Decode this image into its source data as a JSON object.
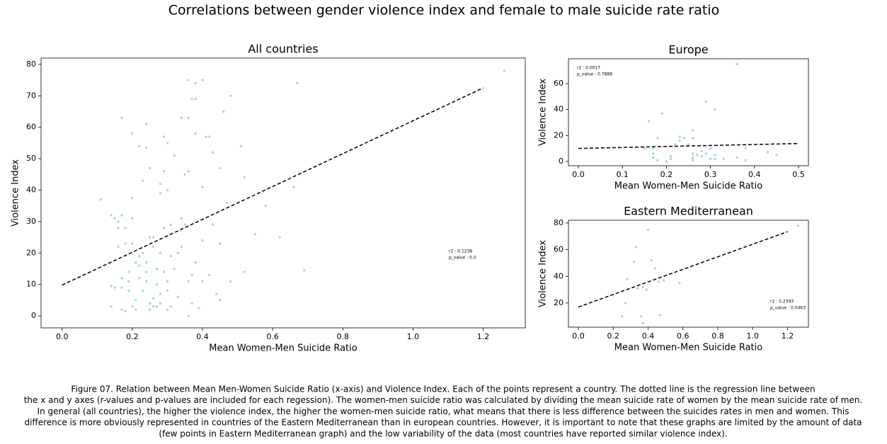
{
  "title": "Correlations between gender violence index and female to male suicide rate ratio",
  "caption": [
    "Figure 07. Relation between Mean Men-Women Suicide Ratio (x-axis) and Violence Index. Each of the points represent a country. The dotted line is the regression line between",
    "the x and y axes (r-values and p-values are included for each regession). The women-men suicide ratio was calculated by dividing the mean suicide rate of women by the mean suicide rate of men.",
    "In general (all countries), the higher the violence index, the higher the women-men suicide ratio, what means that there is less difference between the suicides rates in men and women. This",
    "difference is more obviously represented in countries of the Eastern Mediterranean than in european countries. However, it is important to note that these graphs are limited by the amount of data",
    "(few points in Eastern Mediterranean graph) and the low variability of the data (most countries have reported similar violence index)."
  ],
  "chart_data": [
    {
      "type": "scatter",
      "title": "All countries",
      "x_label": "Mean Women-Men Suicide Ratio",
      "y_label": "Violence Index",
      "color": "#a6d5ea",
      "x": [
        0.11,
        0.14,
        0.14,
        0.14,
        0.15,
        0.15,
        0.16,
        0.16,
        0.16,
        0.17,
        0.17,
        0.17,
        0.17,
        0.17,
        0.18,
        0.18,
        0.18,
        0.19,
        0.19,
        0.19,
        0.2,
        0.2,
        0.2,
        0.2,
        0.2,
        0.21,
        0.21,
        0.21,
        0.22,
        0.22,
        0.22,
        0.22,
        0.23,
        0.23,
        0.23,
        0.24,
        0.24,
        0.24,
        0.24,
        0.24,
        0.25,
        0.25,
        0.25,
        0.25,
        0.26,
        0.26,
        0.26,
        0.26,
        0.27,
        0.27,
        0.27,
        0.28,
        0.28,
        0.28,
        0.28,
        0.28,
        0.29,
        0.29,
        0.29,
        0.29,
        0.3,
        0.3,
        0.3,
        0.3,
        0.3,
        0.31,
        0.31,
        0.31,
        0.32,
        0.32,
        0.33,
        0.33,
        0.34,
        0.34,
        0.34,
        0.35,
        0.35,
        0.36,
        0.36,
        0.36,
        0.36,
        0.36,
        0.37,
        0.37,
        0.37,
        0.38,
        0.38,
        0.38,
        0.38,
        0.39,
        0.4,
        0.4,
        0.4,
        0.4,
        0.41,
        0.42,
        0.42,
        0.43,
        0.43,
        0.44,
        0.45,
        0.45,
        0.45,
        0.46,
        0.47,
        0.48,
        0.48,
        0.51,
        0.52,
        0.52,
        0.55,
        0.58,
        0.62,
        0.66,
        0.67,
        0.69,
        1.26
      ],
      "values": [
        37,
        32,
        9.5,
        3,
        9,
        31,
        30,
        22,
        28,
        63,
        32,
        12,
        9,
        2,
        1.5,
        28,
        23,
        11,
        8,
        14,
        58,
        37.5,
        31,
        23,
        3,
        2,
        5,
        17,
        54,
        19,
        12,
        16,
        43,
        8,
        20,
        61,
        53.5,
        17,
        14,
        11,
        47,
        25,
        4,
        2,
        22,
        3,
        5.5,
        25,
        3,
        10,
        15,
        42,
        39,
        20,
        7,
        4,
        57,
        46,
        28,
        14,
        55,
        40,
        11,
        8,
        2,
        29,
        19,
        3,
        51,
        15,
        20,
        6,
        63,
        31,
        22,
        45,
        29,
        75,
        63,
        46,
        11,
        0,
        69,
        13,
        4,
        74,
        69,
        58,
        17,
        2.5,
        75,
        41,
        24,
        11,
        57,
        57,
        13,
        52,
        29,
        7,
        47,
        23,
        5,
        65,
        36,
        70,
        11,
        54,
        44,
        14,
        26,
        35,
        25,
        41,
        74,
        14.5,
        78
      ],
      "regression": {
        "x": [
          0,
          1.2
        ],
        "y": [
          9.8,
          72.5
        ]
      },
      "annotations": [
        "r2 : 0.1238",
        "p_value : 0.0"
      ],
      "xlim": [
        -0.06,
        1.32
      ],
      "ylim": [
        -3.8,
        82.0
      ],
      "xticks": [
        {
          "value": 0,
          "label": "0.0"
        },
        0.2,
        0.4,
        0.6,
        0.8,
        {
          "value": 1,
          "label": "1.0"
        },
        1.2
      ],
      "yticks": [
        0,
        10,
        20,
        30,
        40,
        50,
        60,
        70,
        80
      ]
    },
    {
      "type": "scatter",
      "title": "Europe",
      "x_label": "Mean Women-Men Suicide Ratio",
      "y_label": "Violence Index",
      "color": "#a6d5ea",
      "x": [
        0.15,
        0.16,
        0.17,
        0.17,
        0.17,
        0.18,
        0.18,
        0.19,
        0.2,
        0.21,
        0.21,
        0.22,
        0.23,
        0.23,
        0.24,
        0.25,
        0.26,
        0.26,
        0.26,
        0.26,
        0.26,
        0.27,
        0.28,
        0.28,
        0.29,
        0.29,
        0.3,
        0.3,
        0.31,
        0.31,
        0.31,
        0.33,
        0.36,
        0.36,
        0.38,
        0.38,
        0.43,
        0.45
      ],
      "values": [
        10,
        31,
        3,
        6,
        10,
        1,
        18,
        37,
        0,
        2,
        4,
        13,
        19,
        16,
        18,
        13,
        24,
        18,
        6,
        3,
        1,
        5,
        8,
        4,
        46,
        6,
        2,
        10,
        40,
        5,
        2,
        2,
        75,
        3,
        1,
        10,
        7,
        5
      ],
      "regression": {
        "x": [
          0,
          0.5
        ],
        "y": [
          10,
          13.8
        ]
      },
      "annotations": [
        "r2 : 0.0017",
        "p_value : 0.7886"
      ],
      "xlim": [
        -0.0225,
        0.5225
      ],
      "ylim": [
        -3.3,
        79.1
      ],
      "xticks": [
        {
          "value": 0,
          "label": "0.0"
        },
        0.1,
        0.2,
        0.3,
        0.4,
        0.5
      ],
      "yticks": [
        0,
        20,
        40,
        60
      ]
    },
    {
      "type": "scatter",
      "title": "Eastern Mediterranean",
      "x_label": "Mean Women-Men Suicide Ratio",
      "y_label": "Violence Index",
      "color": "#a6d5ea",
      "x": [
        0.25,
        0.27,
        0.28,
        0.32,
        0.33,
        0.34,
        0.36,
        0.37,
        0.37,
        0.39,
        0.4,
        0.42,
        0.44,
        0.46,
        0.47,
        0.49,
        0.58,
        1.26
      ],
      "values": [
        10,
        20,
        38,
        51,
        62,
        31,
        10,
        5,
        32,
        30,
        75,
        52,
        46,
        36,
        11,
        37,
        35,
        78
      ],
      "regression": {
        "x": [
          0,
          1.2
        ],
        "y": [
          17,
          73.5
        ]
      },
      "annotations": [
        "r2 : 0.2393",
        "p_value : 0.0463"
      ],
      "xlim": [
        -0.057,
        1.32
      ],
      "ylim": [
        1.9,
        82.1
      ],
      "xticks": [
        {
          "value": 0,
          "label": "0.0"
        },
        0.2,
        0.4,
        0.6,
        0.8,
        {
          "value": 1,
          "label": "1.0"
        },
        1.2
      ],
      "yticks": [
        20,
        40,
        60,
        80
      ]
    }
  ]
}
